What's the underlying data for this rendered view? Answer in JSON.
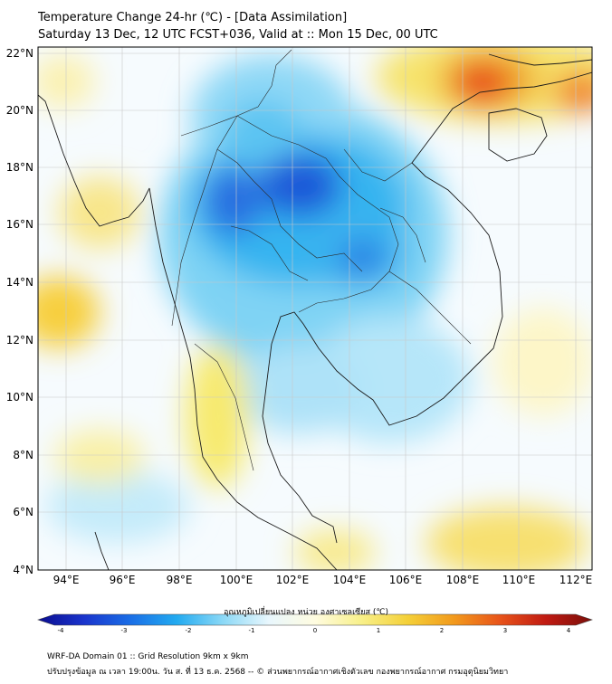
{
  "title": {
    "line1": "Temperature Change 24-hr (℃) - [Data Assimilation]",
    "line2": "Saturday 13 Dec, 12 UTC FCST+036, Valid at :: Mon 15 Dec, 00 UTC"
  },
  "map": {
    "lat_labels": [
      "22°N",
      "20°N",
      "18°N",
      "16°N",
      "14°N",
      "12°N",
      "10°N",
      "8°N",
      "6°N",
      "4°N"
    ],
    "lon_labels": [
      "94°E",
      "96°E",
      "98°E",
      "100°E",
      "102°E",
      "104°E",
      "106°E",
      "108°E",
      "110°E",
      "112°E"
    ],
    "lat_range": [
      4,
      22.3
    ],
    "lon_range": [
      93,
      112.5
    ],
    "field_anomalies": [
      {
        "region": "Northeast Thailand / central Laos",
        "lon": 102.2,
        "lat": 17.3,
        "value": -3.0
      },
      {
        "region": "Northern Thailand",
        "lon": 99.9,
        "lat": 16.8,
        "value": -2.6
      },
      {
        "region": "Northeast Thailand south",
        "lon": 104.4,
        "lat": 14.8,
        "value": -2.1
      },
      {
        "region": "Upper Myanmar",
        "lon": 98.0,
        "lat": 20.5,
        "value": -1.5
      },
      {
        "region": "Northern Vietnam / Laos",
        "lon": 104.0,
        "lat": 19.5,
        "value": -1.4
      },
      {
        "region": "Gulf of Thailand",
        "lon": 102.5,
        "lat": 10.0,
        "value": -0.8
      },
      {
        "region": "Cambodia / South Vietnam",
        "lon": 106.0,
        "lat": 12.0,
        "value": -1.0
      },
      {
        "region": "Andaman Sea west",
        "lon": 95.0,
        "lat": 6.5,
        "value": -0.6
      },
      {
        "region": "South China coast",
        "lon": 108.8,
        "lat": 21.2,
        "value": 3.2
      },
      {
        "region": "Hainan east",
        "lon": 111.6,
        "lat": 20.7,
        "value": 2.4
      },
      {
        "region": "Guangxi north",
        "lon": 107.0,
        "lat": 22.0,
        "value": 1.6
      },
      {
        "region": "Bay of Bengal south",
        "lon": 94.1,
        "lat": 12.9,
        "value": 1.2
      },
      {
        "region": "Myanmar coast",
        "lon": 95.5,
        "lat": 17.0,
        "value": 0.9
      },
      {
        "region": "Southern Thailand",
        "lon": 98.9,
        "lat": 9.0,
        "value": 0.9
      },
      {
        "region": "South China Sea south",
        "lon": 110.5,
        "lat": 5.0,
        "value": 1.1
      },
      {
        "region": "Malaysia northeast",
        "lon": 103.5,
        "lat": 4.8,
        "value": 0.8
      },
      {
        "region": "South China Sea central",
        "lon": 110.5,
        "lat": 11.0,
        "value": 0.6
      }
    ]
  },
  "colorbar": {
    "label": "อุณหภูมิเปลี่ยนแปลง หน่วย องศาเซลเซียส (℃)",
    "min": -4,
    "max": 4,
    "ticks": [
      "-4",
      "-3",
      "-2",
      "-1",
      "0",
      "1",
      "2",
      "3",
      "4"
    ],
    "colors": [
      "#0b0d8f",
      "#1a34cc",
      "#1a6ee6",
      "#22aaf0",
      "#8ad8f6",
      "#e9f7fd",
      "#fffce0",
      "#f8f08a",
      "#f4d038",
      "#f29a1c",
      "#e8541a",
      "#c01a12",
      "#7a0f0a"
    ]
  },
  "footer": {
    "line1": "WRF-DA Domain 01 :: Grid Resolution 9km x 9km",
    "line2": "ปรับปรุงข้อมูล ณ เวลา 19:00น. วัน ส. ที่ 13 ธ.ค. 2568 -- © ส่วนพยากรณ์อากาศเชิงตัวเลข กองพยากรณ์อากาศ กรมอุตุนิยมวิทยา"
  }
}
